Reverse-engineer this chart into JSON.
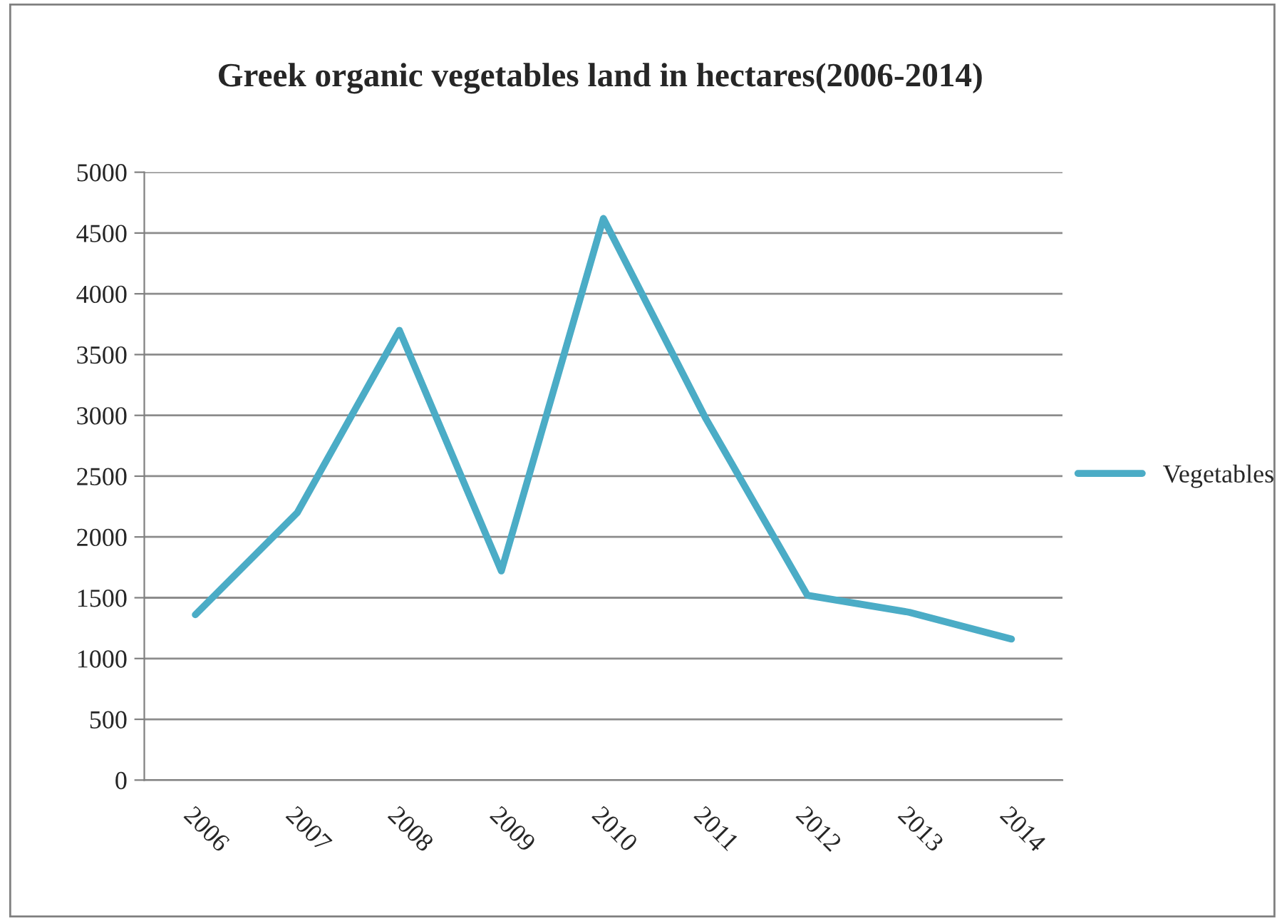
{
  "chart_data": {
    "type": "line",
    "title": "Greek organic vegetables land in hectares(2006-2014)",
    "categories": [
      "2006",
      "2007",
      "2008",
      "2009",
      "2010",
      "2011",
      "2012",
      "2013",
      "2014"
    ],
    "series": [
      {
        "name": "Vegetables",
        "color": "#4bacc6",
        "values": [
          1360,
          2200,
          3700,
          1720,
          4620,
          2980,
          1520,
          1380,
          1160
        ]
      }
    ],
    "ylim": [
      0,
      5000
    ],
    "yticks": [
      0,
      500,
      1000,
      1500,
      2000,
      2500,
      3000,
      3500,
      4000,
      4500,
      5000
    ],
    "grid": "y",
    "legend": "right",
    "marker": "none",
    "line_style": "solid"
  }
}
